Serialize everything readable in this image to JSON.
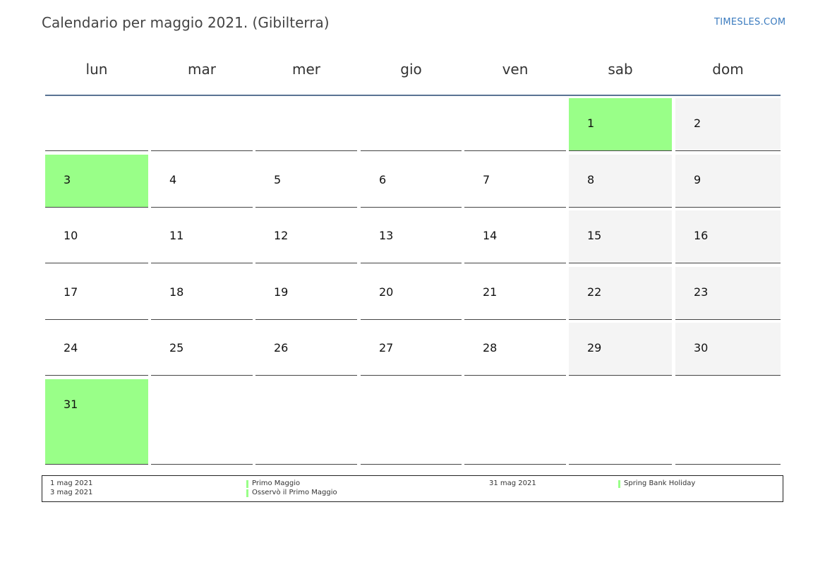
{
  "title": "Calendario per maggio 2021. (Gibilterra)",
  "site": "TIMESLES.COM",
  "weekdays": [
    "lun",
    "mar",
    "mer",
    "gio",
    "ven",
    "sab",
    "dom"
  ],
  "colors": {
    "holiday": "#99ff88",
    "weekend": "#f4f4f4",
    "header_rule": "#5a7393",
    "site_link": "#3b7bbf"
  },
  "weeks": [
    [
      null,
      null,
      null,
      null,
      null,
      "1",
      "2"
    ],
    [
      "3",
      "4",
      "5",
      "6",
      "7",
      "8",
      "9"
    ],
    [
      "10",
      "11",
      "12",
      "13",
      "14",
      "15",
      "16"
    ],
    [
      "17",
      "18",
      "19",
      "20",
      "21",
      "22",
      "23"
    ],
    [
      "24",
      "25",
      "26",
      "27",
      "28",
      "29",
      "30"
    ],
    [
      "31",
      null,
      null,
      null,
      null,
      null,
      null
    ]
  ],
  "holiday_days": [
    "1",
    "3",
    "31"
  ],
  "legend": {
    "d1_date": "1 mag 2021",
    "d1_name": "Primo Maggio",
    "d2_date": "3 mag 2021",
    "d2_name": "Osservò il Primo Maggio",
    "d3_date": "31 mag 2021",
    "d3_name": "Spring Bank Holiday"
  }
}
